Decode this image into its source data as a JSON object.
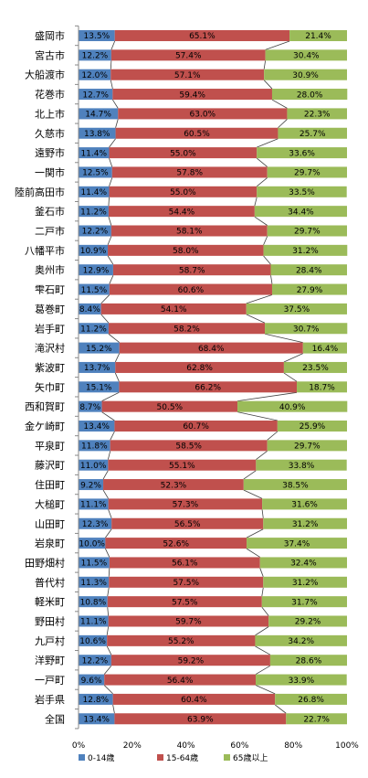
{
  "chart_data": {
    "type": "bar",
    "orientation": "horizontal",
    "stacked": true,
    "percent": true,
    "categories": [
      "盛岡市",
      "宮古市",
      "大船渡市",
      "花巻市",
      "北上市",
      "久慈市",
      "遠野市",
      "一関市",
      "陸前高田市",
      "釜石市",
      "二戸市",
      "八幡平市",
      "奥州市",
      "雫石町",
      "葛巻町",
      "岩手町",
      "滝沢村",
      "紫波町",
      "矢巾町",
      "西和賀町",
      "金ケ崎町",
      "平泉町",
      "藤沢町",
      "住田町",
      "大槌町",
      "山田町",
      "岩泉町",
      "田野畑村",
      "普代村",
      "軽米町",
      "野田村",
      "九戸村",
      "洋野町",
      "一戸町",
      "岩手県",
      "全国"
    ],
    "series": [
      {
        "name": "0-14歳",
        "color": "#4F81BD",
        "values": [
          13.5,
          12.2,
          12.0,
          12.7,
          14.7,
          13.8,
          11.4,
          12.5,
          11.4,
          11.2,
          12.2,
          10.9,
          12.9,
          11.5,
          8.4,
          11.2,
          15.2,
          13.7,
          15.1,
          8.7,
          13.4,
          11.8,
          11.0,
          9.2,
          11.1,
          12.3,
          10.0,
          11.5,
          11.3,
          10.8,
          11.1,
          10.6,
          12.2,
          9.6,
          12.8,
          13.4
        ]
      },
      {
        "name": "15-64歳",
        "color": "#C0504D",
        "values": [
          65.1,
          57.4,
          57.1,
          59.4,
          63.0,
          60.5,
          55.0,
          57.8,
          55.0,
          54.4,
          58.1,
          58.0,
          58.7,
          60.6,
          54.1,
          58.2,
          68.4,
          62.8,
          66.2,
          50.5,
          60.7,
          58.5,
          55.1,
          52.3,
          57.3,
          56.5,
          52.6,
          56.1,
          57.5,
          57.5,
          59.7,
          55.2,
          59.2,
          56.4,
          60.4,
          63.9
        ]
      },
      {
        "name": "65歳以上",
        "color": "#9BBB59",
        "values": [
          21.4,
          30.4,
          30.9,
          28.0,
          22.3,
          25.7,
          33.6,
          29.7,
          33.5,
          34.4,
          29.7,
          31.2,
          28.4,
          27.9,
          37.5,
          30.7,
          16.4,
          23.5,
          18.7,
          40.9,
          25.9,
          29.7,
          33.8,
          38.5,
          31.6,
          31.2,
          37.4,
          32.4,
          31.2,
          31.7,
          29.2,
          34.2,
          28.6,
          33.9,
          26.8,
          22.7
        ]
      }
    ],
    "labels": [
      [
        "13.5%",
        "12.2%",
        "12.0%",
        "12.7%",
        "14.7%",
        "13.8%",
        "11.4%",
        "12.5%",
        "11.4%",
        "11.2%",
        "12.2%",
        "10.9%",
        "12.9%",
        "11.5%",
        "8.4%",
        "11.2%",
        "15.2%",
        "13.7%",
        "15.1%",
        "8.7%",
        "13.4%",
        "11.8%",
        "11.0%",
        "9.2%",
        "11.1%",
        "12.3%",
        "10.0%",
        "11.5%",
        "11.3%",
        "10.8%",
        "11.1%",
        "10.6%",
        "12.2%",
        "9.6%",
        "12.8%",
        "13.4%"
      ],
      [
        "65.1%",
        "57.4%",
        "57.1%",
        "59.4%",
        "63.0%",
        "60.5%",
        "55.0%",
        "57.8%",
        "55.0%",
        "54.4%",
        "58.1%",
        "58.0%",
        "58.7%",
        "60.6%",
        "54.1%",
        "58.2%",
        "68.4%",
        "62.8%",
        "66.2%",
        "50.5%",
        "60.7%",
        "58.5%",
        "55.1%",
        "52.3%",
        "57.3%",
        "56.5%",
        "52.6%",
        "56.1%",
        "57.5%",
        "57.5%",
        "59.7%",
        "55.2%",
        "59.2%",
        "56.4%",
        "60.4%",
        "63.9%"
      ],
      [
        "21.4%",
        "30.4%",
        "30.9%",
        "28.0%",
        "22.3%",
        "25.7%",
        "33.6%",
        "29.7%",
        "33.5%",
        "34.4%",
        "29.7%",
        "31.2%",
        "28.4%",
        "27.9%",
        "37.5%",
        "30.7%",
        "16.4%",
        "23.5%",
        "18.7%",
        "40.9%",
        "25.9%",
        "29.7%",
        "33.8%",
        "38.5%",
        "31.6%",
        "31.2%",
        "37.4%",
        "32.4%",
        "31.2%",
        "31.7%",
        "29.2%",
        "34.2%",
        "28.6%",
        "33.9%",
        "26.8%",
        "22.7%"
      ]
    ],
    "xlim": [
      0,
      100
    ],
    "xticks": [
      "0%",
      "20%",
      "40%",
      "60%",
      "80%",
      "100%"
    ],
    "title": "",
    "xlabel": "",
    "ylabel": "",
    "legend_position": "bottom-left",
    "grid": false,
    "series_lines": true
  }
}
